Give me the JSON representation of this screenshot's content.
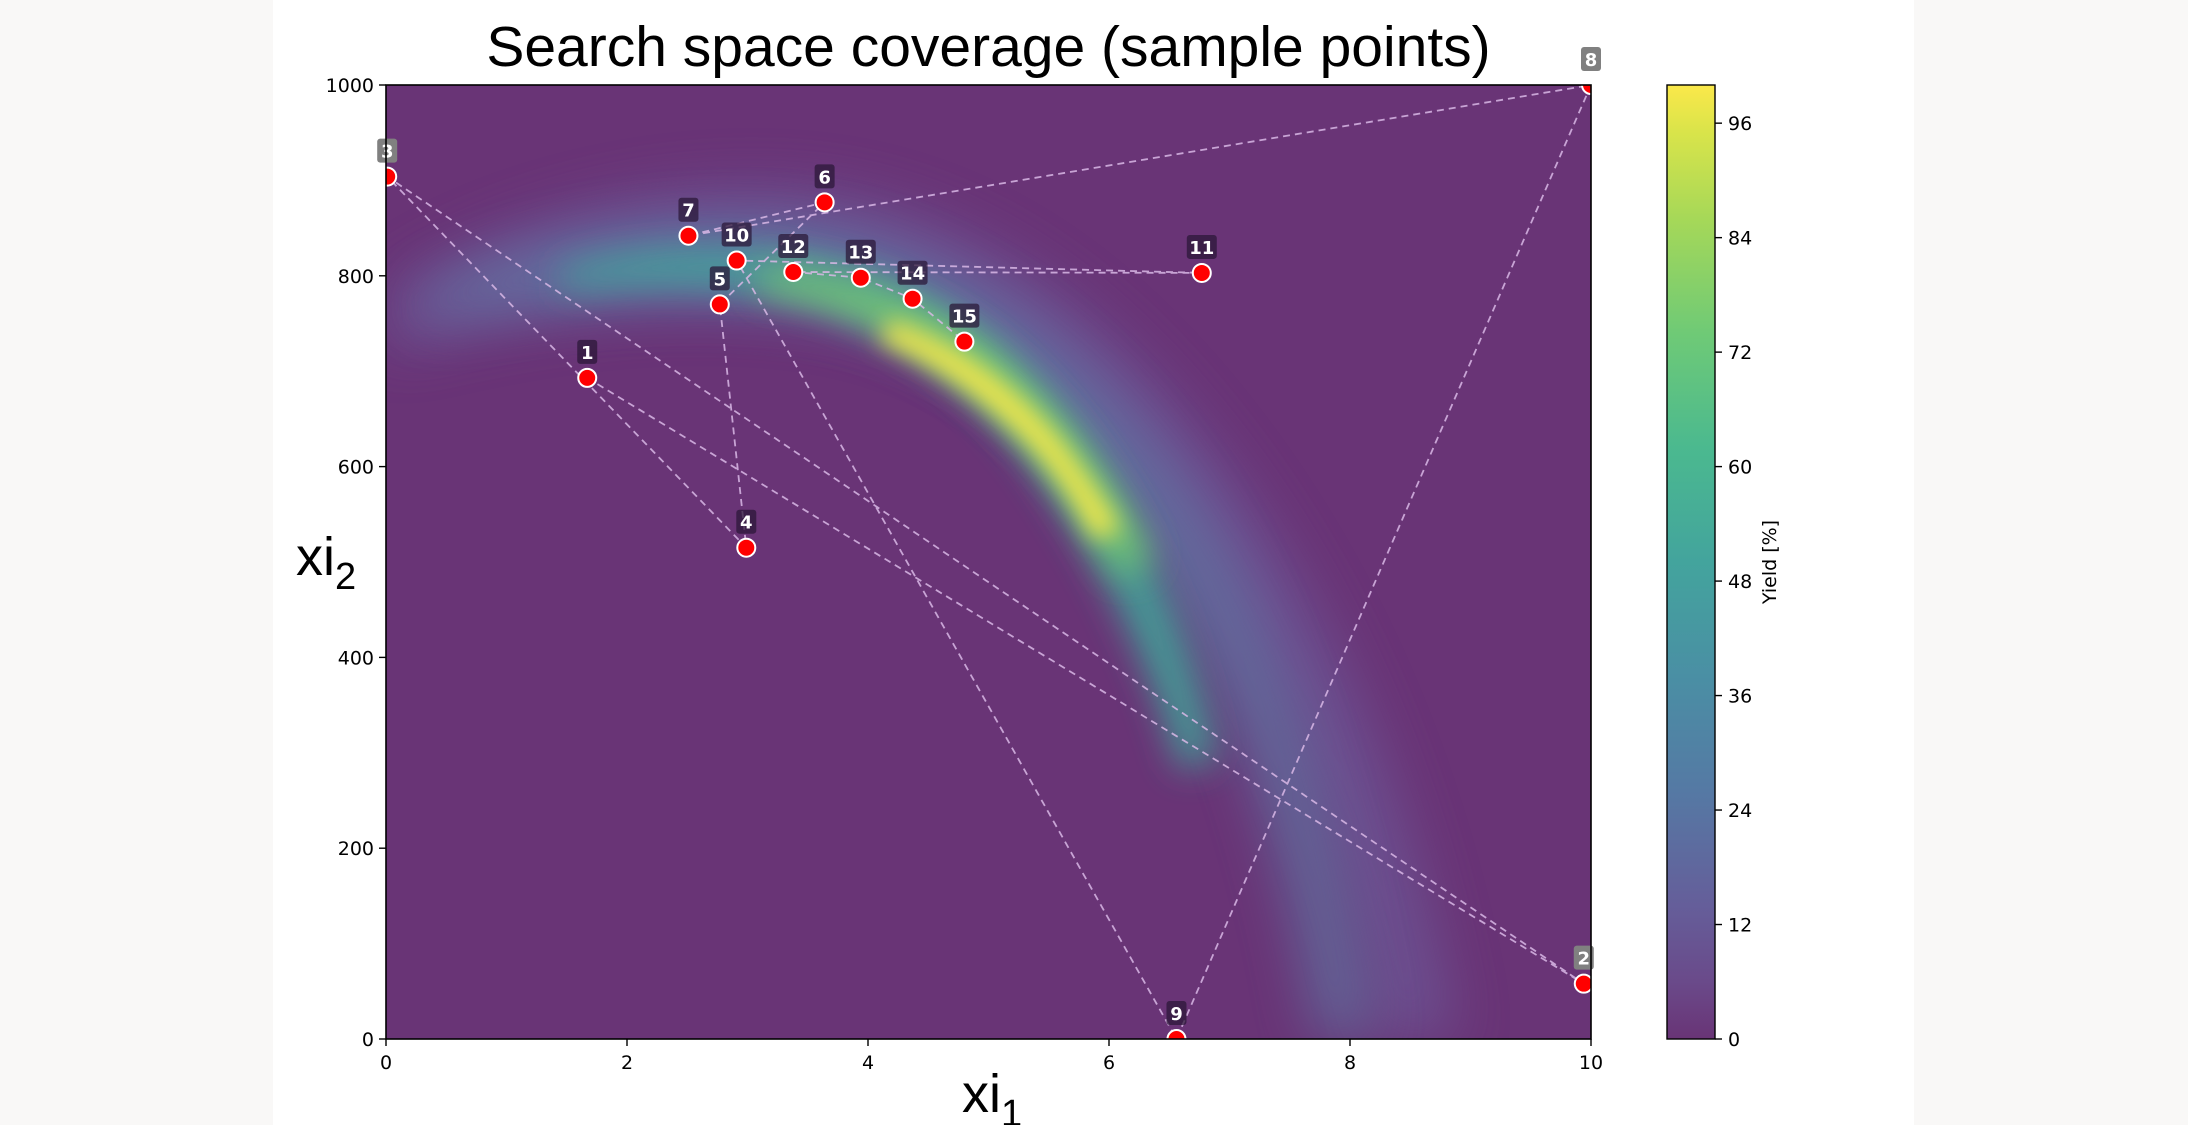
{
  "chart_data": {
    "type": "scatter",
    "title": "Search space coverage (sample points)",
    "xlabel": "xi_1",
    "ylabel": "xi_2",
    "xlabel_main": "xi",
    "xlabel_sub": "1",
    "ylabel_main": "xi",
    "ylabel_sub": "2",
    "xlim": [
      0,
      10
    ],
    "ylim": [
      0,
      1000
    ],
    "xticks": [
      0,
      2,
      4,
      6,
      8,
      10
    ],
    "yticks": [
      0,
      200,
      400,
      600,
      800,
      1000
    ],
    "grid": false,
    "background": "filled contour of yield (viridis), banana-shaped ridge peaking near xi_1≈5.2, xi_2≈690",
    "colorbar": {
      "label": "Yield [%]",
      "range": [
        0,
        100
      ],
      "ticks": [
        0,
        12,
        24,
        36,
        48,
        60,
        72,
        84,
        96
      ],
      "colormap": "viridis"
    },
    "series": [
      {
        "name": "sample points",
        "marker_color": "#ff0000",
        "connected": true,
        "line_style": "dashed",
        "points": [
          {
            "label": "1",
            "x": 1.67,
            "y": 693
          },
          {
            "label": "2",
            "x": 9.94,
            "y": 58
          },
          {
            "label": "3",
            "x": 0.01,
            "y": 904
          },
          {
            "label": "4",
            "x": 2.99,
            "y": 515
          },
          {
            "label": "5",
            "x": 2.77,
            "y": 770
          },
          {
            "label": "6",
            "x": 3.64,
            "y": 877
          },
          {
            "label": "7",
            "x": 2.51,
            "y": 842
          },
          {
            "label": "8",
            "x": 10.0,
            "y": 1000
          },
          {
            "label": "9",
            "x": 6.56,
            "y": 0
          },
          {
            "label": "10",
            "x": 2.91,
            "y": 816
          },
          {
            "label": "11",
            "x": 6.77,
            "y": 803
          },
          {
            "label": "12",
            "x": 3.38,
            "y": 804
          },
          {
            "label": "13",
            "x": 3.94,
            "y": 798
          },
          {
            "label": "14",
            "x": 4.37,
            "y": 776
          },
          {
            "label": "15",
            "x": 4.8,
            "y": 731
          }
        ]
      }
    ]
  },
  "colors": {
    "background_purple": "#693476",
    "marker": "#ff0000",
    "path": "#d9b8e6"
  }
}
